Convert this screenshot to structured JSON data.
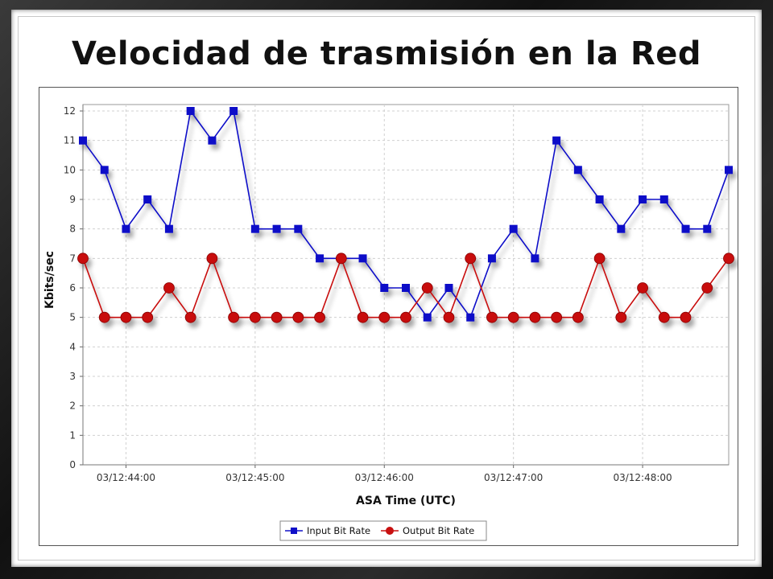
{
  "chart_data": {
    "type": "line",
    "title": "Velocidad de trasmisión en la Red",
    "xlabel": "ASA Time (UTC)",
    "ylabel": "Kbits/sec",
    "ylim": [
      0,
      12
    ],
    "yticks": [
      0,
      1,
      2,
      3,
      4,
      5,
      6,
      7,
      8,
      9,
      10,
      11,
      12
    ],
    "x_tick_labels": [
      "03/12:44:00",
      "03/12:45:00",
      "03/12:46:00",
      "03/12:47:00",
      "03/12:48:00"
    ],
    "x_tick_indices": [
      2,
      8,
      14,
      20,
      26
    ],
    "grid": true,
    "legend_position": "bottom",
    "series": [
      {
        "name": "Input Bit Rate",
        "color": "#1010c8",
        "marker": "square",
        "values": [
          11,
          10,
          8,
          9,
          8,
          12,
          11,
          12,
          8,
          8,
          8,
          7,
          7,
          7,
          6,
          6,
          5,
          6,
          5,
          7,
          8,
          7,
          11,
          10,
          9,
          8,
          9,
          9,
          8,
          8,
          10
        ]
      },
      {
        "name": "Output Bit Rate",
        "color": "#c81010",
        "marker": "circle",
        "values": [
          7,
          5,
          5,
          5,
          6,
          5,
          7,
          5,
          5,
          5,
          5,
          5,
          7,
          5,
          5,
          5,
          6,
          5,
          7,
          5,
          5,
          5,
          5,
          5,
          7,
          5,
          6,
          5,
          5,
          6,
          7
        ]
      }
    ]
  }
}
